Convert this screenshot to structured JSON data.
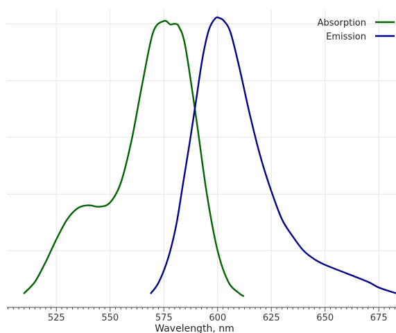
{
  "chart_data": {
    "type": "line",
    "title": "",
    "xlabel": "Wavelength, nm",
    "ylabel": "",
    "xlim": [
      502,
      683
    ],
    "ylim": [
      0,
      1.05
    ],
    "x_ticks": [
      525,
      550,
      575,
      600,
      625,
      650,
      675
    ],
    "x_tick_labels": [
      "525",
      "550",
      "575",
      "600",
      "625",
      "650",
      "675"
    ],
    "x_minor_tick_step": 2.5,
    "y_gridlines": [
      0.2,
      0.4,
      0.6,
      0.8,
      1.0
    ],
    "grid": true,
    "legend_position": "top-right",
    "series": [
      {
        "name": "Absorption",
        "color": "#006400",
        "x": [
          510,
          515,
          520,
          525,
          530,
          535,
          540,
          545,
          550,
          555,
          560,
          565,
          570,
          575,
          578,
          580,
          582,
          585,
          590,
          595,
          600,
          605,
          610,
          612
        ],
        "y": [
          0.05,
          0.09,
          0.16,
          0.24,
          0.31,
          0.35,
          0.36,
          0.355,
          0.37,
          0.44,
          0.59,
          0.79,
          0.97,
          1.01,
          0.998,
          1.0,
          0.99,
          0.92,
          0.67,
          0.4,
          0.2,
          0.09,
          0.05,
          0.04
        ],
        "linewidth": 2.4
      },
      {
        "name": "Emission",
        "color": "#00008B",
        "x": [
          569,
          572,
          575,
          578,
          581,
          584,
          587,
          590,
          593,
          596,
          599,
          601,
          603,
          606,
          610,
          615,
          620,
          625,
          630,
          635,
          640,
          645,
          650,
          660,
          670,
          675,
          683
        ],
        "y": [
          0.05,
          0.08,
          0.13,
          0.2,
          0.3,
          0.44,
          0.58,
          0.73,
          0.88,
          0.98,
          1.02,
          1.02,
          1.01,
          0.97,
          0.85,
          0.68,
          0.53,
          0.41,
          0.31,
          0.25,
          0.2,
          0.17,
          0.15,
          0.12,
          0.09,
          0.07,
          0.05
        ],
        "linewidth": 2.4
      }
    ]
  }
}
